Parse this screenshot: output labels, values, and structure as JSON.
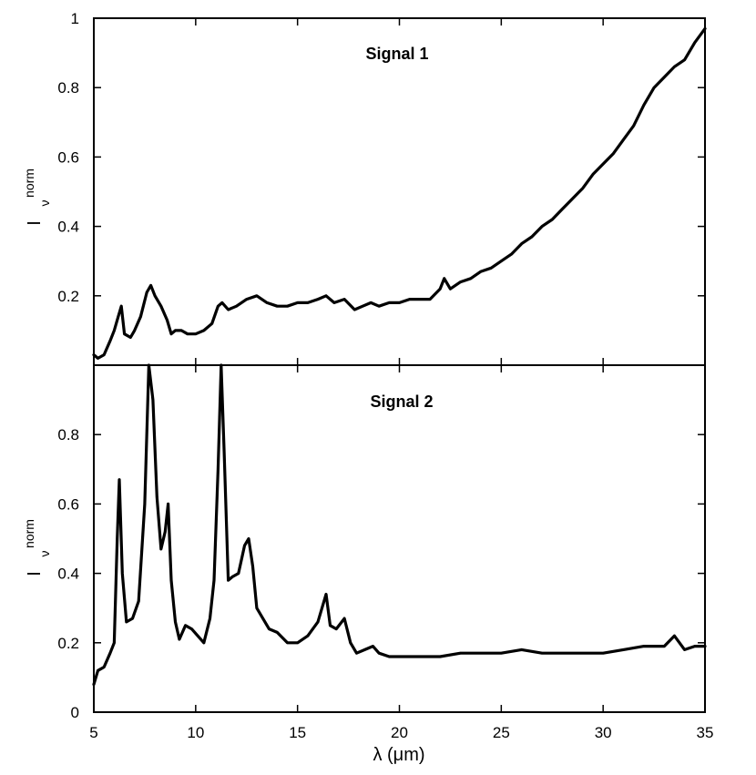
{
  "chart_data": [
    {
      "type": "line",
      "title": "Signal 1",
      "xlabel": "",
      "ylabel": "I",
      "ylabel_superscript": "norm",
      "ylabel_subscript": "ν",
      "xlim": [
        5,
        35
      ],
      "ylim": [
        0,
        1
      ],
      "x_ticks": [
        5,
        10,
        15,
        20,
        25,
        30,
        35
      ],
      "y_ticks": [
        0.2,
        0.4,
        0.6,
        0.8,
        1
      ],
      "y_tick_labels": [
        "0.2",
        "0.4",
        "0.6",
        "0.8",
        "1"
      ],
      "grid": false,
      "series": [
        {
          "x": [
            5.0,
            5.2,
            5.5,
            5.8,
            6.0,
            6.2,
            6.35,
            6.5,
            6.8,
            7.0,
            7.3,
            7.6,
            7.8,
            8.0,
            8.3,
            8.6,
            8.8,
            9.0,
            9.3,
            9.6,
            10.0,
            10.4,
            10.8,
            11.1,
            11.3,
            11.6,
            12.0,
            12.5,
            13.0,
            13.5,
            14.0,
            14.5,
            15.0,
            15.5,
            16.0,
            16.4,
            16.8,
            17.3,
            17.8,
            18.2,
            18.6,
            19.0,
            19.5,
            20.0,
            20.5,
            21.0,
            21.5,
            22.0,
            22.2,
            22.5,
            23.0,
            23.5,
            24.0,
            24.5,
            25.0,
            25.5,
            26.0,
            26.5,
            27.0,
            27.5,
            28.0,
            28.5,
            29.0,
            29.5,
            30.0,
            30.5,
            31.0,
            31.5,
            32.0,
            32.5,
            33.0,
            33.5,
            34.0,
            34.5,
            35.0
          ],
          "y": [
            0.03,
            0.02,
            0.03,
            0.07,
            0.1,
            0.14,
            0.17,
            0.09,
            0.08,
            0.1,
            0.14,
            0.21,
            0.23,
            0.2,
            0.17,
            0.13,
            0.09,
            0.1,
            0.1,
            0.09,
            0.09,
            0.1,
            0.12,
            0.17,
            0.18,
            0.16,
            0.17,
            0.19,
            0.2,
            0.18,
            0.17,
            0.17,
            0.18,
            0.18,
            0.19,
            0.2,
            0.18,
            0.19,
            0.16,
            0.17,
            0.18,
            0.17,
            0.18,
            0.18,
            0.19,
            0.19,
            0.19,
            0.22,
            0.25,
            0.22,
            0.24,
            0.25,
            0.27,
            0.28,
            0.3,
            0.32,
            0.35,
            0.37,
            0.4,
            0.42,
            0.45,
            0.48,
            0.51,
            0.55,
            0.58,
            0.61,
            0.65,
            0.69,
            0.75,
            0.8,
            0.83,
            0.86,
            0.88,
            0.93,
            0.97
          ]
        }
      ]
    },
    {
      "type": "line",
      "title": "Signal 2",
      "xlabel": "λ (μm)",
      "ylabel": "I",
      "ylabel_superscript": "norm",
      "ylabel_subscript": "ν",
      "xlim": [
        5,
        35
      ],
      "ylim": [
        0,
        1
      ],
      "x_ticks": [
        5,
        10,
        15,
        20,
        25,
        30,
        35
      ],
      "x_tick_labels": [
        "5",
        "10",
        "15",
        "20",
        "25",
        "30",
        "35"
      ],
      "y_ticks": [
        0,
        0.2,
        0.4,
        0.6,
        0.8
      ],
      "y_tick_labels": [
        "0",
        "0.2",
        "0.4",
        "0.6",
        "0.8"
      ],
      "grid": false,
      "series": [
        {
          "x": [
            5.0,
            5.2,
            5.5,
            5.8,
            6.0,
            6.15,
            6.25,
            6.4,
            6.6,
            6.9,
            7.2,
            7.5,
            7.7,
            7.9,
            8.1,
            8.3,
            8.5,
            8.65,
            8.8,
            9.0,
            9.2,
            9.5,
            9.8,
            10.1,
            10.4,
            10.7,
            10.9,
            11.1,
            11.25,
            11.4,
            11.6,
            11.8,
            12.1,
            12.4,
            12.6,
            12.8,
            13.0,
            13.3,
            13.6,
            14.0,
            14.5,
            15.0,
            15.5,
            16.0,
            16.2,
            16.4,
            16.6,
            16.9,
            17.3,
            17.6,
            17.9,
            18.3,
            18.7,
            19.0,
            19.5,
            20.0,
            21.0,
            22.0,
            23.0,
            24.0,
            25.0,
            26.0,
            27.0,
            28.0,
            29.0,
            30.0,
            31.0,
            32.0,
            33.0,
            33.5,
            34.0,
            34.5,
            35.0
          ],
          "y": [
            0.08,
            0.12,
            0.13,
            0.17,
            0.2,
            0.5,
            0.67,
            0.4,
            0.26,
            0.27,
            0.32,
            0.6,
            1.0,
            0.9,
            0.62,
            0.47,
            0.52,
            0.6,
            0.38,
            0.26,
            0.21,
            0.25,
            0.24,
            0.22,
            0.2,
            0.27,
            0.38,
            0.7,
            1.0,
            0.75,
            0.38,
            0.39,
            0.4,
            0.48,
            0.5,
            0.42,
            0.3,
            0.27,
            0.24,
            0.23,
            0.2,
            0.2,
            0.22,
            0.26,
            0.3,
            0.34,
            0.25,
            0.24,
            0.27,
            0.2,
            0.17,
            0.18,
            0.19,
            0.17,
            0.16,
            0.16,
            0.16,
            0.16,
            0.17,
            0.17,
            0.17,
            0.18,
            0.17,
            0.17,
            0.17,
            0.17,
            0.18,
            0.19,
            0.19,
            0.22,
            0.18,
            0.19,
            0.19
          ]
        }
      ]
    }
  ]
}
